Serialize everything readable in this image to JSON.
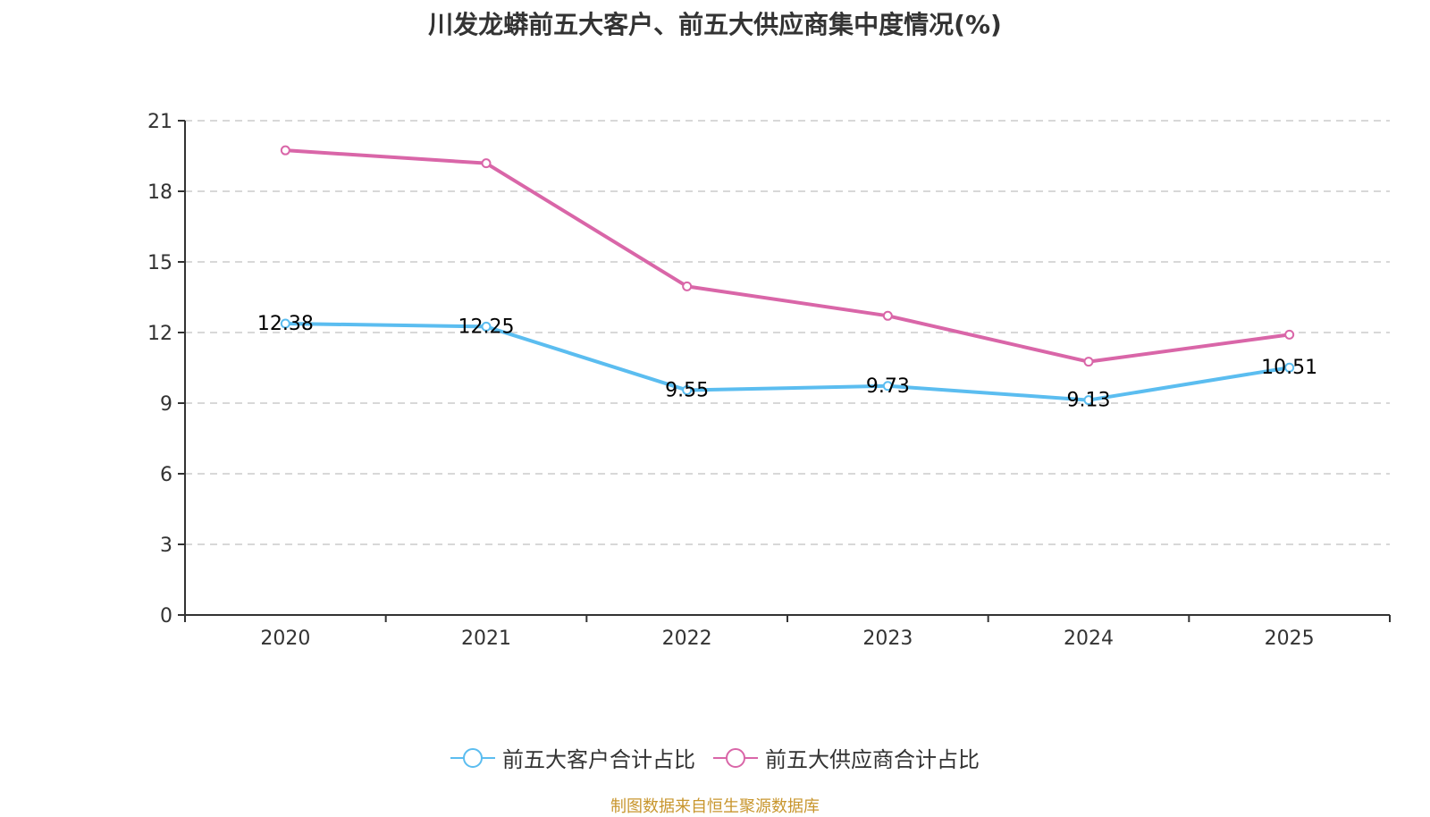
{
  "title": "川发龙蟒前五大客户、前五大供应商集中度情况(%)",
  "source": "制图数据来自恒生聚源数据库",
  "chart_data": {
    "type": "line",
    "title": "川发龙蟒前五大客户、前五大供应商集中度情况(%)",
    "xlabel": "",
    "ylabel": "",
    "categories": [
      "2020",
      "2021",
      "2022",
      "2023",
      "2024",
      "2025"
    ],
    "ylim": [
      0,
      21
    ],
    "yticks": [
      0,
      3,
      6,
      9,
      12,
      15,
      18,
      21
    ],
    "grid": true,
    "legend_position": "bottom",
    "series": [
      {
        "name": "前五大客户合计占比",
        "color": "#5bbdf0",
        "values": [
          12.38,
          12.25,
          9.55,
          9.73,
          9.13,
          10.51
        ],
        "labels": [
          "12.38",
          "12.25",
          "9.55",
          "9.73",
          "9.13",
          "10.51"
        ],
        "show_labels": true
      },
      {
        "name": "前五大供应商合计占比",
        "color": "#d966a8",
        "values": [
          19.74,
          19.19,
          13.96,
          12.71,
          10.76,
          11.91
        ],
        "show_labels": false
      }
    ]
  }
}
